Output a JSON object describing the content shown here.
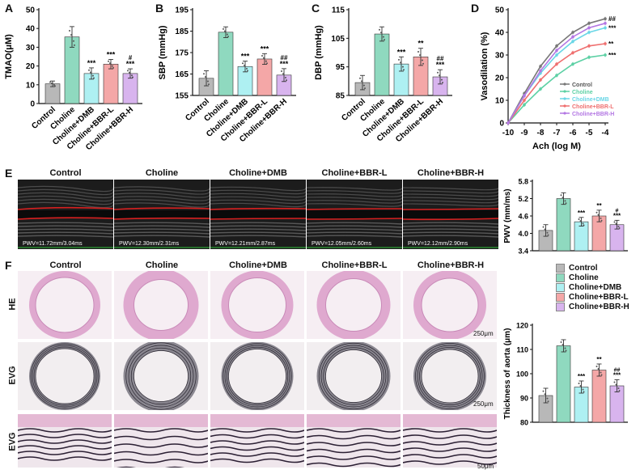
{
  "panels": {
    "A": "A",
    "B": "B",
    "C": "C",
    "D": "D",
    "E": "E",
    "F": "F"
  },
  "groups": [
    "Control",
    "Choline",
    "Choline+DMB",
    "Choline+BBR-L",
    "Choline+BBR-H"
  ],
  "colors": {
    "control": "#b8b8b8",
    "choline": "#8fd9bf",
    "dmb": "#aef0f2",
    "bbrl": "#f4a7a7",
    "bbrh": "#d8b4ee",
    "line_control": "#777777",
    "line_choline": "#5cd0a4",
    "line_dmb": "#6ad6e6",
    "line_bbrl": "#ef6f6f",
    "line_bbrh": "#b377e3"
  },
  "chart_data": [
    {
      "panel": "A",
      "type": "bar",
      "ylabel": "TMAO(μM)",
      "ylim": [
        0,
        50
      ],
      "yticks": [
        "0",
        "10",
        "20",
        "30",
        "40",
        "50"
      ],
      "categories": [
        "Control",
        "Choline",
        "Choline+DMB",
        "Choline+BBR-L",
        "Choline+BBR-H"
      ],
      "values": [
        10.5,
        35.5,
        16,
        21,
        16
      ],
      "errors": [
        1.5,
        5.5,
        3,
        2.5,
        2.5
      ],
      "annotations": [
        "",
        "",
        "***",
        "***",
        "***"
      ],
      "hash": [
        "",
        "",
        "",
        "",
        "#"
      ]
    },
    {
      "panel": "B",
      "type": "bar",
      "ylabel": "SBP (mmHg)",
      "ylim": [
        155,
        195
      ],
      "yticks": [
        "155",
        "165",
        "175",
        "185",
        "195"
      ],
      "categories": [
        "Control",
        "Choline",
        "Choline+DMB",
        "Choline+BBR-L",
        "Choline+BBR-H"
      ],
      "values": [
        163,
        184.5,
        168.5,
        172,
        164.5
      ],
      "errors": [
        3.5,
        2.5,
        2.5,
        2.5,
        3
      ],
      "annotations": [
        "",
        "",
        "***",
        "***",
        "***"
      ],
      "hash": [
        "",
        "",
        "",
        "",
        "##"
      ]
    },
    {
      "panel": "C",
      "type": "bar",
      "ylabel": "DBP (mmHg)",
      "ylim": [
        85,
        115
      ],
      "yticks": [
        "85",
        "95",
        "105",
        "115"
      ],
      "categories": [
        "Control",
        "Choline",
        "Choline+DMB",
        "Choline+BBR-L",
        "Choline+BBR-H"
      ],
      "values": [
        89.5,
        106.5,
        96,
        98.5,
        91.5
      ],
      "errors": [
        2.5,
        2.5,
        2.5,
        3,
        2.5
      ],
      "annotations": [
        "",
        "",
        "***",
        "**",
        "***"
      ],
      "hash": [
        "",
        "",
        "",
        "",
        "##"
      ]
    },
    {
      "panel": "D",
      "type": "line",
      "ylabel": "Vasodilation (%)",
      "xlabel": "Ach (log M)",
      "xlim": [
        -10,
        -4
      ],
      "ylim": [
        0,
        50
      ],
      "xticks": [
        "-10",
        "-9",
        "-8",
        "-7",
        "-6",
        "-5",
        "-4"
      ],
      "yticks": [
        "0",
        "10",
        "20",
        "30",
        "40",
        "50"
      ],
      "x": [
        -10,
        -9,
        -8,
        -7,
        -6,
        -5,
        -4
      ],
      "series": [
        {
          "name": "Control",
          "values": [
            0,
            13,
            25,
            34,
            40,
            44,
            46
          ],
          "mark": "##"
        },
        {
          "name": "Choline",
          "values": [
            0,
            8,
            15,
            21,
            26,
            29,
            30
          ],
          "mark": "***"
        },
        {
          "name": "Choline+DMB",
          "values": [
            0,
            12,
            22,
            30,
            36,
            40,
            42
          ],
          "mark": "***"
        },
        {
          "name": "Choline+BBR-L",
          "values": [
            0,
            10,
            19,
            26,
            31,
            34,
            35
          ],
          "mark": "**"
        },
        {
          "name": "Choline+BBR-H",
          "values": [
            0,
            12,
            23,
            32,
            38,
            42,
            44
          ],
          "mark": ""
        }
      ],
      "legend": [
        "Control",
        "Choline",
        "Choline+DMB",
        "Choline+BBR-L",
        "Choline+BBR-H"
      ]
    },
    {
      "panel": "E",
      "type": "bar",
      "ylabel": "PWV (mm/ms)",
      "ylim": [
        3.4,
        5.8
      ],
      "yticks": [
        "3.4",
        "4.0",
        "4.6",
        "5.2",
        "5.8"
      ],
      "categories": [
        "Control",
        "Choline",
        "Choline+DMB",
        "Choline+BBR-L",
        "Choline+BBR-H"
      ],
      "values": [
        4.1,
        5.2,
        4.4,
        4.6,
        4.3
      ],
      "errors": [
        0.2,
        0.2,
        0.15,
        0.2,
        0.15
      ],
      "annotations": [
        "",
        "",
        "***",
        "**",
        "***"
      ],
      "hash": [
        "",
        "",
        "",
        "",
        "#"
      ]
    },
    {
      "panel": "F",
      "type": "bar",
      "ylabel": "Thickness of aorta (μm)",
      "ylim": [
        80,
        120
      ],
      "yticks": [
        "80",
        "90",
        "100",
        "110",
        "120"
      ],
      "categories": [
        "Control",
        "Choline",
        "Choline+DMB",
        "Choline+BBR-L",
        "Choline+BBR-H"
      ],
      "values": [
        91,
        111.5,
        94.5,
        101.5,
        95
      ],
      "errors": [
        3,
        2.5,
        2.5,
        2.5,
        2.5
      ],
      "annotations": [
        "",
        "",
        "***",
        "**",
        "***"
      ],
      "hash": [
        "",
        "",
        "",
        "",
        "##"
      ],
      "legend": [
        "Control",
        "Choline",
        "Choline+DMB",
        "Choline+BBR-L",
        "Choline+BBR-H"
      ]
    }
  ],
  "ultrasound": {
    "titles": [
      "Control",
      "Choline",
      "Choline+DMB",
      "Choline+BBR-L",
      "Choline+BBR-H"
    ],
    "pwv_labels": [
      "PWV=11.72mm/3.04ms",
      "PWV=12.30mm/2.31ms",
      "PWV=12.21mm/2.87ms",
      "PWV=12.05mm/2.60ms",
      "PWV=12.12mm/2.90ms"
    ]
  },
  "histology": {
    "titles": [
      "Control",
      "Choline",
      "Choline+DMB",
      "Choline+BBR-L",
      "Choline+BBR-H"
    ],
    "rows": [
      "HE",
      "EVG",
      "EVG"
    ],
    "scale_250": "250μm",
    "scale_250b": "250μm",
    "scale_50": "50μm"
  }
}
